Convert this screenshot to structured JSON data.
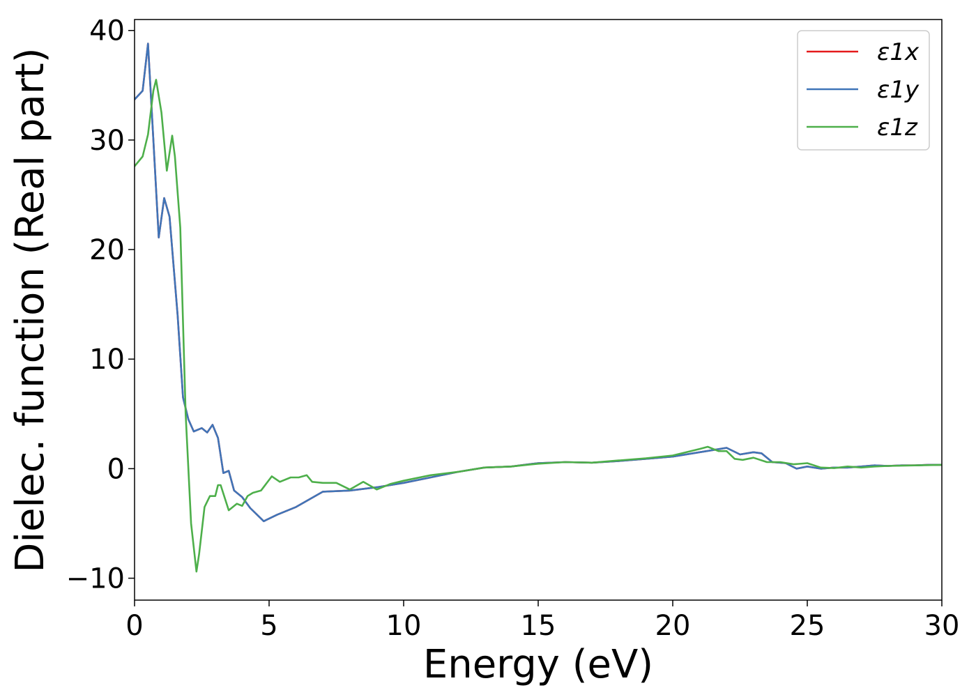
{
  "chart_data": {
    "type": "line",
    "title": "",
    "xlabel": "Energy (eV)",
    "ylabel": "Dielec. function (Real part)",
    "xlim": [
      0,
      30
    ],
    "ylim": [
      -12,
      41
    ],
    "xticks": [
      0,
      5,
      10,
      15,
      20,
      25,
      30
    ],
    "xtick_labels": [
      "0",
      "5",
      "10",
      "15",
      "20",
      "25",
      "30"
    ],
    "yticks": [
      -10,
      0,
      10,
      20,
      30,
      40
    ],
    "ytick_labels": [
      "−10",
      "0",
      "10",
      "20",
      "30",
      "40"
    ],
    "grid": false,
    "legend_position": "top-right",
    "series": [
      {
        "name": "ε1x",
        "color": "#e41a1c",
        "x": [
          0,
          0.3,
          0.5,
          0.7,
          0.9,
          1.1,
          1.3,
          1.6,
          1.8,
          2.0,
          2.2,
          2.5,
          2.7,
          2.9,
          3.1,
          3.3,
          3.5,
          3.7,
          4.0,
          4.3,
          4.8,
          5.3,
          6.0,
          7.0,
          8.0,
          9.0,
          10.0,
          11.0,
          12.0,
          13.0,
          14.0,
          15.0,
          16.0,
          17.0,
          18.0,
          19.0,
          20.0,
          21.0,
          21.5,
          22.0,
          22.5,
          23.0,
          23.3,
          23.7,
          24.2,
          24.6,
          25.0,
          25.5,
          26.0,
          26.5,
          27.0,
          27.5,
          28.0,
          28.5,
          29.0,
          29.5,
          30.0
        ],
        "y": [
          33.7,
          34.5,
          38.8,
          30.0,
          21.1,
          24.7,
          23.0,
          14.0,
          6.5,
          4.5,
          3.4,
          3.7,
          3.3,
          4.0,
          2.8,
          -0.4,
          -0.2,
          -2.0,
          -2.6,
          -3.6,
          -4.8,
          -4.2,
          -3.5,
          -2.1,
          -2.0,
          -1.7,
          -1.3,
          -0.8,
          -0.3,
          0.1,
          0.2,
          0.5,
          0.6,
          0.55,
          0.7,
          0.9,
          1.1,
          1.5,
          1.7,
          1.9,
          1.3,
          1.5,
          1.4,
          0.6,
          0.5,
          0.0,
          0.2,
          0.0,
          0.1,
          0.1,
          0.2,
          0.3,
          0.25,
          0.3,
          0.3,
          0.35,
          0.35
        ]
      },
      {
        "name": "ε1y",
        "color": "#3f75b8",
        "x": [
          0,
          0.3,
          0.5,
          0.7,
          0.9,
          1.1,
          1.3,
          1.6,
          1.8,
          2.0,
          2.2,
          2.5,
          2.7,
          2.9,
          3.1,
          3.3,
          3.5,
          3.7,
          4.0,
          4.3,
          4.8,
          5.3,
          6.0,
          7.0,
          8.0,
          9.0,
          10.0,
          11.0,
          12.0,
          13.0,
          14.0,
          15.0,
          16.0,
          17.0,
          18.0,
          19.0,
          20.0,
          21.0,
          21.5,
          22.0,
          22.5,
          23.0,
          23.3,
          23.7,
          24.2,
          24.6,
          25.0,
          25.5,
          26.0,
          26.5,
          27.0,
          27.5,
          28.0,
          28.5,
          29.0,
          29.5,
          30.0
        ],
        "y": [
          33.7,
          34.5,
          38.8,
          30.0,
          21.1,
          24.7,
          23.0,
          14.0,
          6.5,
          4.5,
          3.4,
          3.7,
          3.3,
          4.0,
          2.8,
          -0.4,
          -0.2,
          -2.0,
          -2.6,
          -3.6,
          -4.8,
          -4.2,
          -3.5,
          -2.1,
          -2.0,
          -1.7,
          -1.3,
          -0.8,
          -0.3,
          0.1,
          0.2,
          0.5,
          0.6,
          0.55,
          0.7,
          0.9,
          1.1,
          1.5,
          1.7,
          1.9,
          1.3,
          1.5,
          1.4,
          0.6,
          0.5,
          0.0,
          0.2,
          0.0,
          0.1,
          0.1,
          0.2,
          0.3,
          0.25,
          0.3,
          0.3,
          0.35,
          0.35
        ]
      },
      {
        "name": "ε1z",
        "color": "#4daf4a",
        "x": [
          0,
          0.3,
          0.5,
          0.7,
          0.8,
          1.0,
          1.2,
          1.4,
          1.5,
          1.7,
          1.9,
          2.1,
          2.3,
          2.4,
          2.6,
          2.8,
          3.0,
          3.1,
          3.2,
          3.5,
          3.8,
          4.0,
          4.2,
          4.4,
          4.7,
          5.1,
          5.4,
          5.8,
          6.1,
          6.4,
          6.6,
          7.0,
          7.5,
          8.0,
          8.5,
          9.0,
          9.5,
          10.0,
          11.0,
          12.0,
          13.0,
          14.0,
          15.0,
          16.0,
          17.0,
          18.0,
          19.0,
          20.0,
          21.0,
          21.3,
          21.7,
          22.0,
          22.3,
          22.6,
          23.0,
          23.5,
          24.0,
          24.5,
          25.0,
          25.5,
          26.0,
          26.5,
          27.0,
          27.5,
          28.0,
          29.0,
          30.0
        ],
        "y": [
          27.6,
          28.5,
          30.5,
          34.5,
          35.5,
          32.5,
          27.2,
          30.4,
          28.5,
          22.0,
          5.0,
          -5.0,
          -9.4,
          -7.8,
          -3.5,
          -2.5,
          -2.5,
          -1.5,
          -1.5,
          -3.8,
          -3.2,
          -3.4,
          -2.5,
          -2.2,
          -2.0,
          -0.7,
          -1.2,
          -0.8,
          -0.8,
          -0.6,
          -1.2,
          -1.3,
          -1.3,
          -1.9,
          -1.2,
          -1.9,
          -1.4,
          -1.1,
          -0.6,
          -0.3,
          0.1,
          0.2,
          0.45,
          0.6,
          0.55,
          0.75,
          0.95,
          1.2,
          1.8,
          2.0,
          1.6,
          1.6,
          0.9,
          0.8,
          1.0,
          0.6,
          0.6,
          0.4,
          0.5,
          0.1,
          0.05,
          0.2,
          0.1,
          0.2,
          0.25,
          0.3,
          0.35
        ]
      }
    ]
  }
}
